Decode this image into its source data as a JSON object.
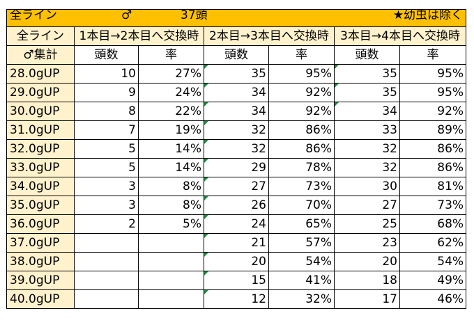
{
  "title_bar": {
    "line": "全ライン",
    "sex": "♂",
    "count": "37頭",
    "note": "★幼虫は除く"
  },
  "header": {
    "corner_top": "全ライン",
    "corner_bottom": "♂集計",
    "groups": [
      "1本目→2本目へ交換時",
      "2本目→3本目へ交換時",
      "3本目→4本目へ交換時"
    ],
    "sub": [
      "頭数",
      "率",
      "頭数",
      "率",
      "頭数",
      "率"
    ]
  },
  "rows": [
    {
      "label": "28.0gUP",
      "c": [
        "10",
        "27%",
        "35",
        "95%",
        "35",
        "95%"
      ]
    },
    {
      "label": "29.0gUP",
      "c": [
        "9",
        "24%",
        "34",
        "92%",
        "35",
        "95%"
      ]
    },
    {
      "label": "30.0gUP",
      "c": [
        "8",
        "22%",
        "34",
        "92%",
        "34",
        "92%"
      ]
    },
    {
      "label": "31.0gUP",
      "c": [
        "7",
        "19%",
        "32",
        "86%",
        "33",
        "89%"
      ]
    },
    {
      "label": "32.0gUP",
      "c": [
        "5",
        "14%",
        "32",
        "86%",
        "32",
        "86%"
      ]
    },
    {
      "label": "33.0gUP",
      "c": [
        "5",
        "14%",
        "29",
        "78%",
        "32",
        "86%"
      ]
    },
    {
      "label": "34.0gUP",
      "c": [
        "3",
        "8%",
        "27",
        "73%",
        "30",
        "81%"
      ]
    },
    {
      "label": "35.0gUP",
      "c": [
        "3",
        "8%",
        "26",
        "70%",
        "27",
        "73%"
      ]
    },
    {
      "label": "36.0gUP",
      "c": [
        "2",
        "5%",
        "24",
        "65%",
        "25",
        "68%"
      ]
    },
    {
      "label": "37.0gUP",
      "c": [
        "",
        "",
        "21",
        "57%",
        "23",
        "62%"
      ]
    },
    {
      "label": "38.0gUP",
      "c": [
        "",
        "",
        "20",
        "54%",
        "20",
        "54%"
      ]
    },
    {
      "label": "39.0gUP",
      "c": [
        "",
        "",
        "15",
        "41%",
        "18",
        "49%"
      ]
    },
    {
      "label": "40.0gUP",
      "c": [
        "",
        "",
        "12",
        "32%",
        "17",
        "46%"
      ]
    }
  ],
  "colors": {
    "title_bg": "#ffc000",
    "header_bg": "#fff2cc",
    "error_marker": "#1e8a3e"
  }
}
